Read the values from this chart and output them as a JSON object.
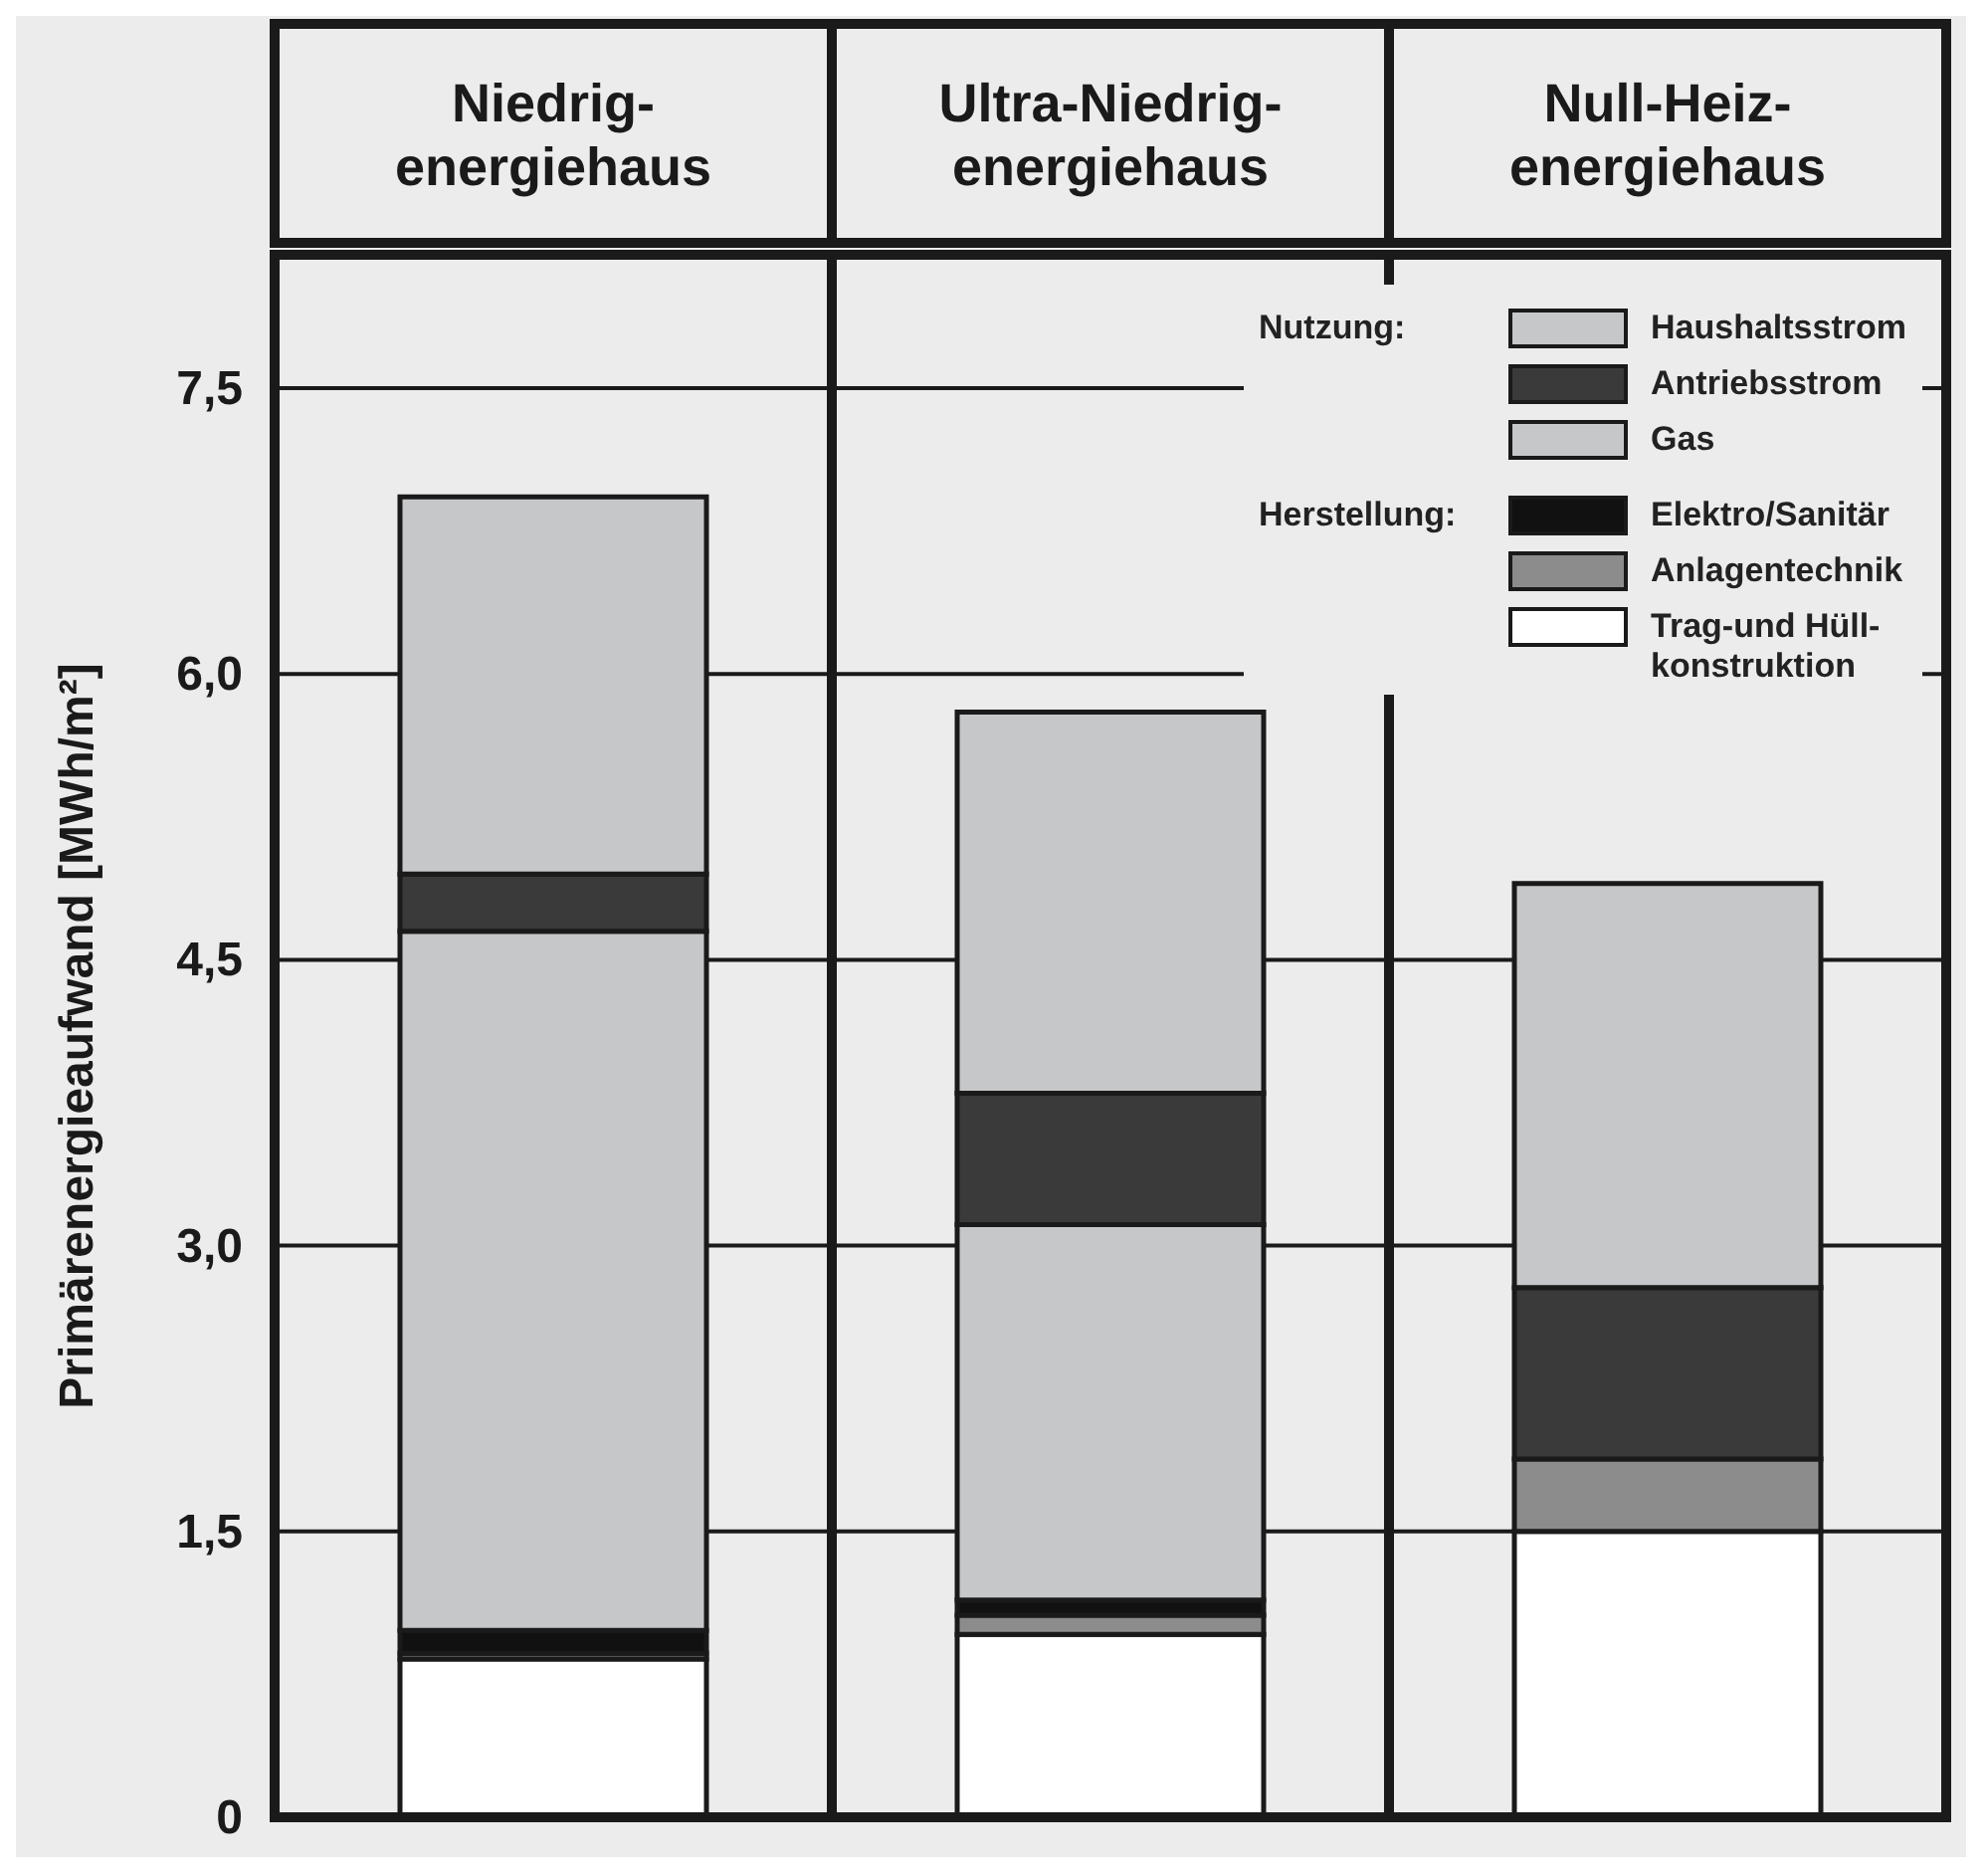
{
  "chart_data": {
    "type": "bar",
    "stacked": true,
    "ylabel": "Primärenergieaufwand [MWh/m²]",
    "categories": [
      "Niedrig-energiehaus",
      "Ultra-Niedrig-energiehaus",
      "Null-Heiz-energiehaus"
    ],
    "series": [
      {
        "name": "Trag-und Hüll-konstruktion",
        "color": "#ffffff",
        "values": [
          0.83,
          0.96,
          1.5
        ]
      },
      {
        "name": "Anlagentechnik",
        "color": "#8c8c8c",
        "values": [
          0.03,
          0.1,
          0.38
        ]
      },
      {
        "name": "Elektro/Sanitär",
        "color": "#111111",
        "values": [
          0.12,
          0.08,
          0
        ]
      },
      {
        "name": "Gas",
        "color": "#c6c7c9",
        "values": [
          3.67,
          1.97,
          0
        ]
      },
      {
        "name": "Antriebsstrom",
        "color": "#3a3a3a",
        "values": [
          0.3,
          0.69,
          0.9
        ]
      },
      {
        "name": "Haushaltsstrom",
        "color": "#c6c7c9",
        "values": [
          1.98,
          2.0,
          2.12
        ]
      }
    ],
    "ylim": [
      0,
      8.2
    ],
    "yticks": [
      0,
      {
        "value": 1.5,
        "label": "1,5"
      },
      {
        "value": 3,
        "label": "3,0"
      },
      {
        "value": 4.5,
        "label": "4,5"
      },
      {
        "value": 6,
        "label": "6,0"
      },
      {
        "value": 7.5,
        "label": "7,5"
      }
    ],
    "grid": "y",
    "legend": "top right",
    "annotations": [
      "Nutzung:",
      "Herstellung:"
    ]
  }
}
